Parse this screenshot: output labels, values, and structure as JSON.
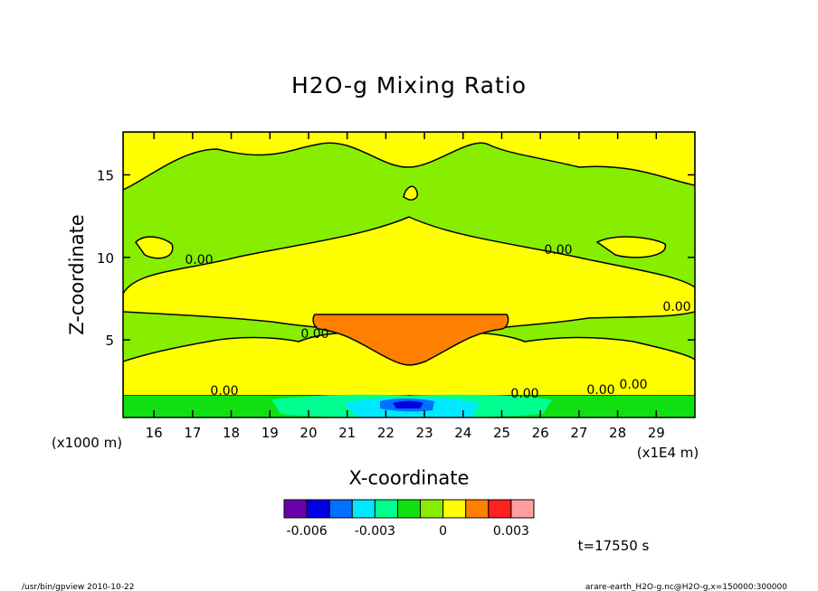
{
  "chart_data": {
    "type": "contour",
    "title": "H2O-g Mixing Ratio",
    "xlabel": "X-coordinate",
    "ylabel": "Z-coordinate",
    "x_unit_left": "(x1000 m)",
    "x_unit_right": "(x1E4 m)",
    "xlim": [
      15.2,
      30.0
    ],
    "ylim": [
      0.3,
      17.6
    ],
    "x_ticks": [
      16,
      17,
      18,
      19,
      20,
      21,
      22,
      23,
      24,
      25,
      26,
      27,
      28,
      29
    ],
    "y_ticks": [
      5,
      10,
      15
    ],
    "contour_labels": [
      "0.00",
      "0.00",
      "0.00",
      "0.00",
      "0.00",
      "0.00",
      "0.00",
      "0.00"
    ],
    "color_levels": [
      -0.006,
      -0.005,
      -0.004,
      -0.003,
      -0.002,
      -0.001,
      0,
      0.001,
      0.002,
      0.003
    ],
    "colorbar_colors": [
      "#6a00a8",
      "#0000e0",
      "#0070ff",
      "#00e8ff",
      "#00ff90",
      "#10e010",
      "#88ee00",
      "#ffff00",
      "#ff8000",
      "#ff2020",
      "#ffa0a0"
    ],
    "colorbar_tick_labels": [
      "-0.006",
      "-0.003",
      "0",
      "0.003"
    ],
    "colorbar_tick_values": [
      -0.006,
      -0.003,
      0,
      0.003
    ],
    "time_label": "t=17550 s"
  },
  "footer": {
    "left": "/usr/bin/gpview  2010-10-22",
    "right": "arare-earth_H2O-g.nc@H2O-g,x=150000:300000"
  }
}
